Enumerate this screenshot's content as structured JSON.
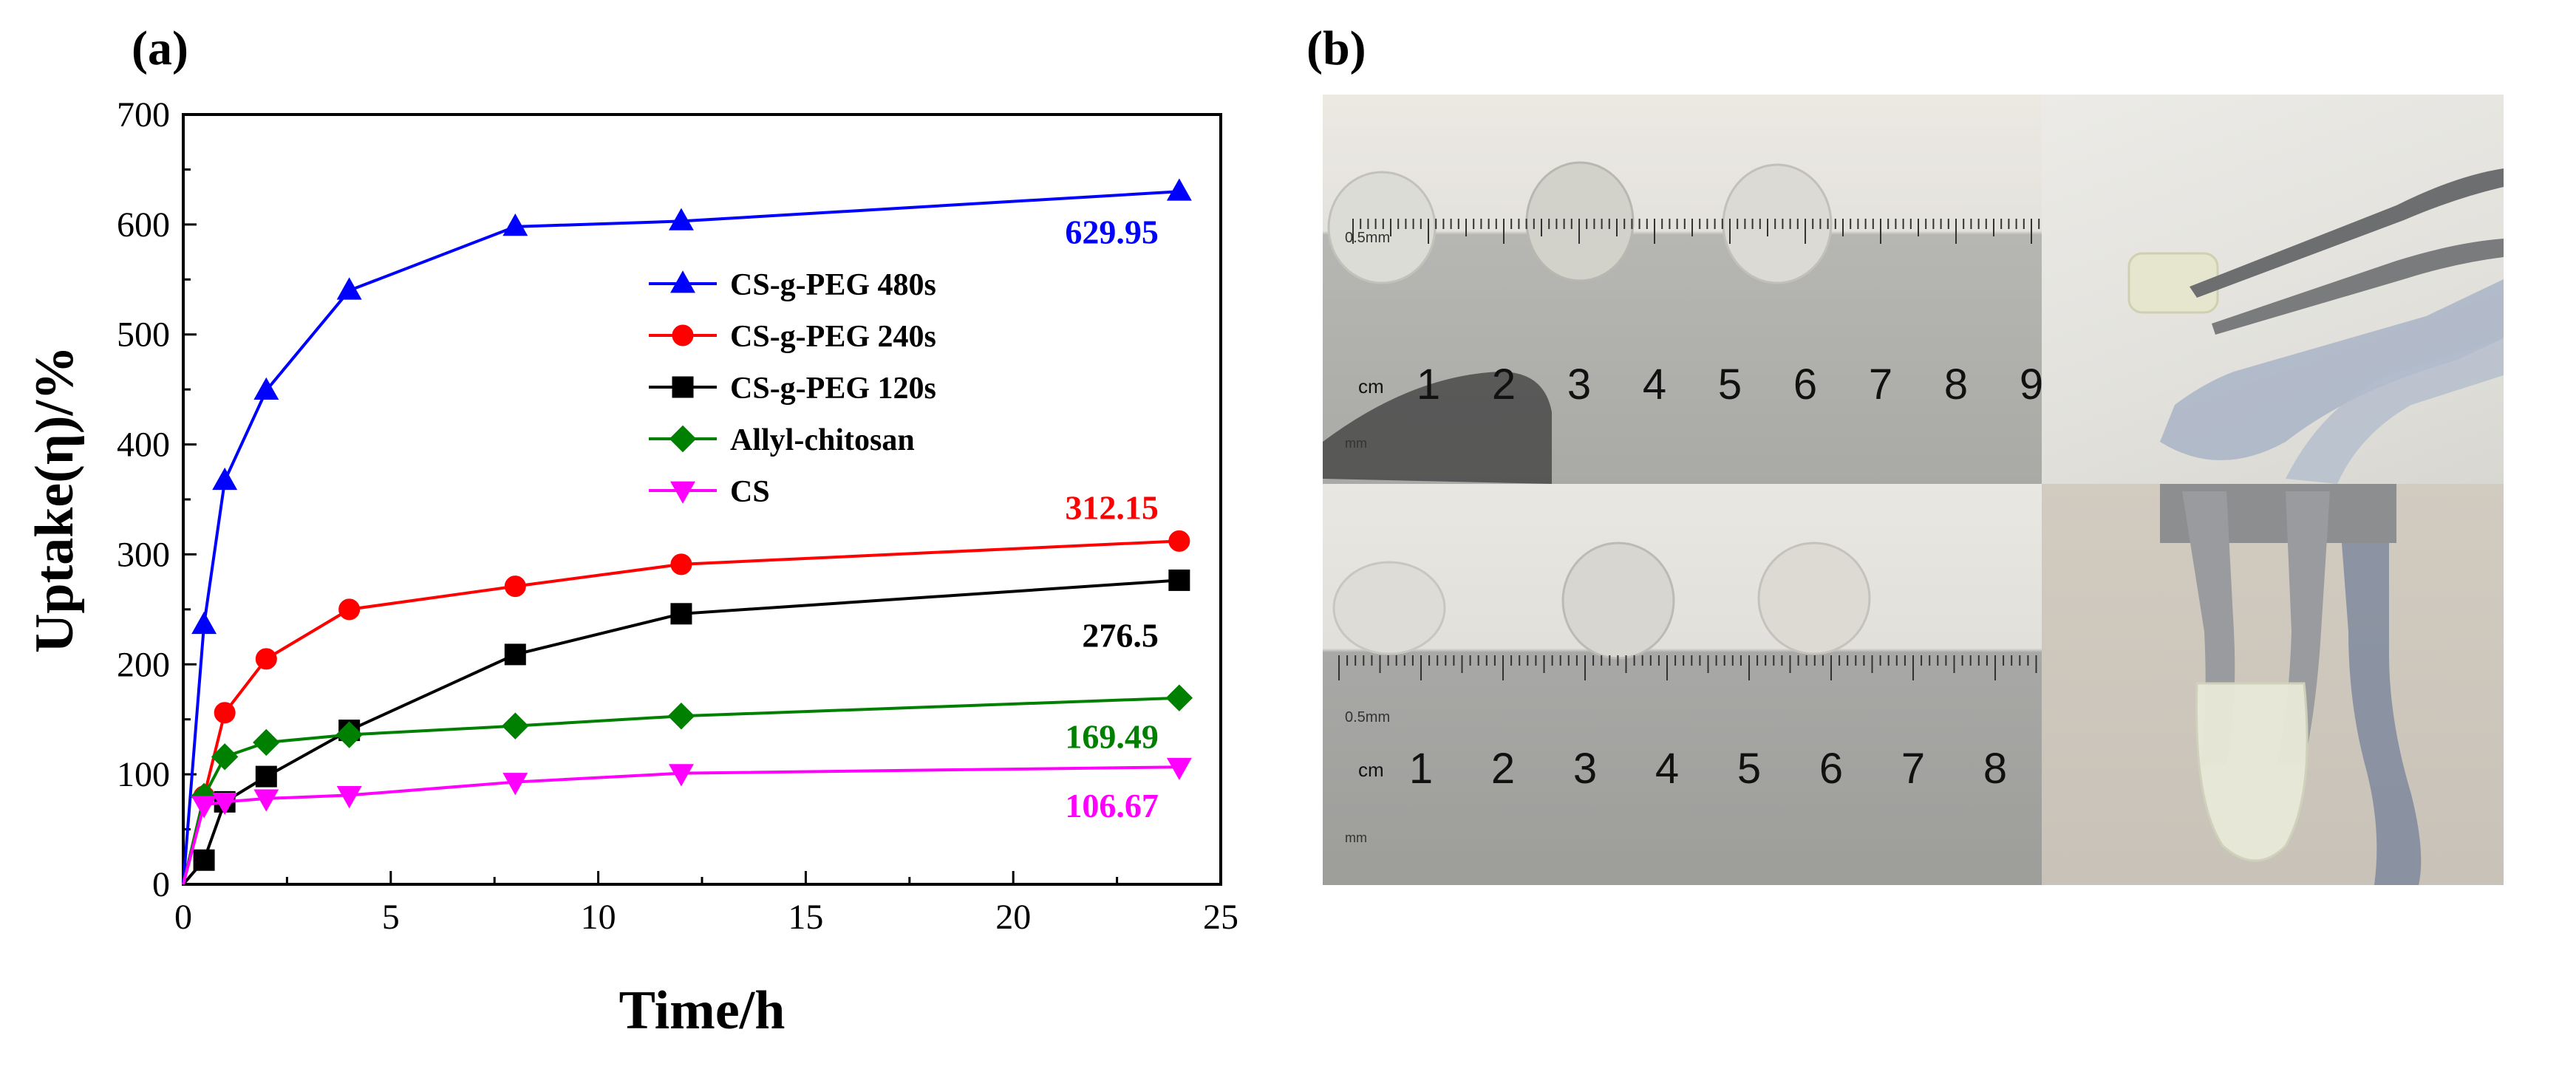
{
  "panel_labels": {
    "a": "(a)",
    "b": "(b)"
  },
  "chart_data": {
    "type": "line",
    "xlabel": "Time/h",
    "ylabel": "Uptake(η)/%",
    "xlim": [
      0,
      25
    ],
    "ylim": [
      0,
      700
    ],
    "xticks": [
      0,
      5,
      10,
      15,
      20,
      25
    ],
    "yticks": [
      0,
      100,
      200,
      300,
      400,
      500,
      600,
      700
    ],
    "grid": false,
    "legend_position": "center-right",
    "x": [
      0,
      0.5,
      1,
      2,
      4,
      8,
      12,
      24
    ],
    "series": [
      {
        "name": "CS-g-PEG 480s",
        "color": "#0000ff",
        "marker": "triangle-up",
        "values": [
          0,
          236,
          367,
          449,
          540,
          598,
          603,
          629.95
        ],
        "end_label": "629.95"
      },
      {
        "name": "CS-g-PEG 240s",
        "color": "#ff0000",
        "marker": "circle",
        "values": [
          0,
          80,
          156,
          205,
          250,
          271,
          291,
          312.15
        ],
        "end_label": "312.15"
      },
      {
        "name": "CS-g-PEG 120s",
        "color": "#000000",
        "marker": "square",
        "values": [
          0,
          22,
          75,
          98,
          140,
          209,
          246,
          276.5
        ],
        "end_label": "276.5"
      },
      {
        "name": "Allyl-chitosan",
        "color": "#008000",
        "marker": "diamond",
        "values": [
          0,
          80,
          116,
          129,
          136,
          144,
          153,
          169.49
        ],
        "end_label": "169.49"
      },
      {
        "name": "CS",
        "color": "#ff00ff",
        "marker": "triangle-down",
        "values": [
          0,
          72,
          75,
          78,
          81,
          93,
          101,
          106.67
        ],
        "end_label": "106.67"
      }
    ]
  },
  "ruler_top": {
    "unit": "cm",
    "small_unit": "0.5mm",
    "mm_label": "mm",
    "numbers": [
      "1",
      "2",
      "3",
      "4",
      "5",
      "6",
      "7",
      "8",
      "9"
    ]
  },
  "ruler_bottom": {
    "unit": "cm",
    "small_unit": "0.5mm",
    "mm_label": "mm",
    "numbers": [
      "1",
      "2",
      "3",
      "4",
      "5",
      "6",
      "7",
      "8"
    ]
  }
}
